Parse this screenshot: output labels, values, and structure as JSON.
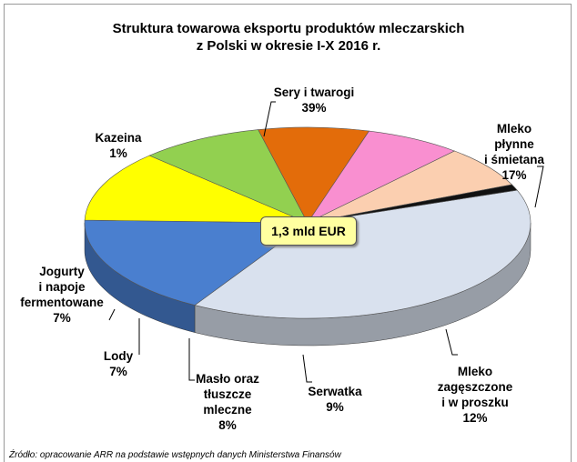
{
  "chart_data": {
    "type": "pie",
    "title": "Struktura towarowa eksportu produktów mleczarskich\nz Polski w okresie I-X 2016 r.",
    "center_label": "1,3 mld EUR",
    "categories": [
      "Sery i twarogi",
      "Mleko płynne\ni śmietana",
      "Mleko\nzagęszczone\ni w proszku",
      "Serwatka",
      "Masło oraz\ntłuszcze\nmleczne",
      "Lody",
      "Jogurty\ni napoje\nfermentowane",
      "Kazeina"
    ],
    "values": [
      39,
      17,
      12,
      9,
      8,
      7,
      7,
      1
    ],
    "value_labels": [
      "39%",
      "17%",
      "12%",
      "9%",
      "8%",
      "7%",
      "7%",
      "1%"
    ],
    "colors": [
      "#d9e1ee",
      "#4a7fcf",
      "#ffff00",
      "#92d050",
      "#e36c0a",
      "#f98fd0",
      "#fbcfb0",
      "#111111"
    ],
    "source": "Źródło: opracowanie ARR na podstawie wstępnych danych Ministerstwa Finansów"
  }
}
